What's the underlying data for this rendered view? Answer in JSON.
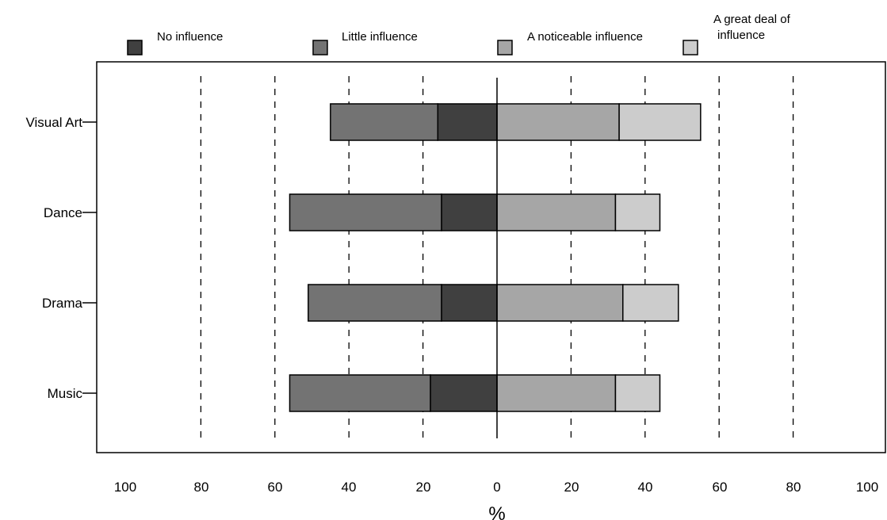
{
  "chart_data": {
    "type": "bar",
    "orientation": "horizontal-diverging",
    "categories": [
      "Visual Art",
      "Dance",
      "Drama",
      "Music"
    ],
    "series": [
      {
        "name": "No influence",
        "side": "negative",
        "color": "#404040",
        "values": [
          16,
          15,
          15,
          18
        ]
      },
      {
        "name": "Little influence",
        "side": "negative",
        "color": "#737373",
        "values": [
          29,
          41,
          36,
          38
        ]
      },
      {
        "name": "A noticeable influence",
        "side": "positive",
        "color": "#a6a6a6",
        "values": [
          33,
          32,
          34,
          32
        ]
      },
      {
        "name": "A great deal of influence",
        "side": "positive",
        "color": "#cccccc",
        "values": [
          22,
          12,
          15,
          12
        ]
      }
    ],
    "legend_lines": [
      [
        "No influence"
      ],
      [
        "Little influence"
      ],
      [
        "A noticeable influence"
      ],
      [
        "A great deal of",
        "influence"
      ]
    ],
    "legend_position": "top",
    "x_ticks": [
      100,
      80,
      60,
      40,
      20,
      0,
      20,
      40,
      60,
      80,
      100
    ],
    "xlim": [
      -100,
      100
    ],
    "gridlines": [
      -80,
      -60,
      -40,
      -20,
      20,
      40,
      60,
      80
    ],
    "grid": "dashed-vertical",
    "xlabel": "%",
    "title": "",
    "ylabel": ""
  }
}
